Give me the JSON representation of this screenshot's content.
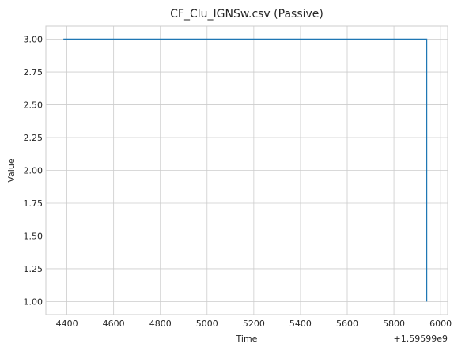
{
  "chart_data": {
    "type": "line",
    "title": "CF_Clu_IGNSw.csv (Passive)",
    "xlabel": "Time",
    "ylabel": "Value",
    "x_offset_label": "+1.59599e9",
    "xlim": [
      4310,
      6030
    ],
    "ylim": [
      0.9,
      3.1
    ],
    "x_ticks": [
      4400,
      4600,
      4800,
      5000,
      5200,
      5400,
      5600,
      5800,
      6000
    ],
    "x_tick_labels": [
      "4400",
      "4600",
      "4800",
      "5000",
      "5200",
      "5400",
      "5600",
      "5800",
      "6000"
    ],
    "y_ticks": [
      1.0,
      1.25,
      1.5,
      1.75,
      2.0,
      2.25,
      2.5,
      2.75,
      3.0
    ],
    "y_tick_labels": [
      "1.00",
      "1.25",
      "1.50",
      "1.75",
      "2.00",
      "2.25",
      "2.50",
      "2.75",
      "3.00"
    ],
    "grid": true,
    "series": [
      {
        "color": "#1f77b4",
        "x": [
          4385,
          5940,
          5940
        ],
        "y": [
          3.0,
          3.0,
          1.0
        ]
      }
    ]
  }
}
